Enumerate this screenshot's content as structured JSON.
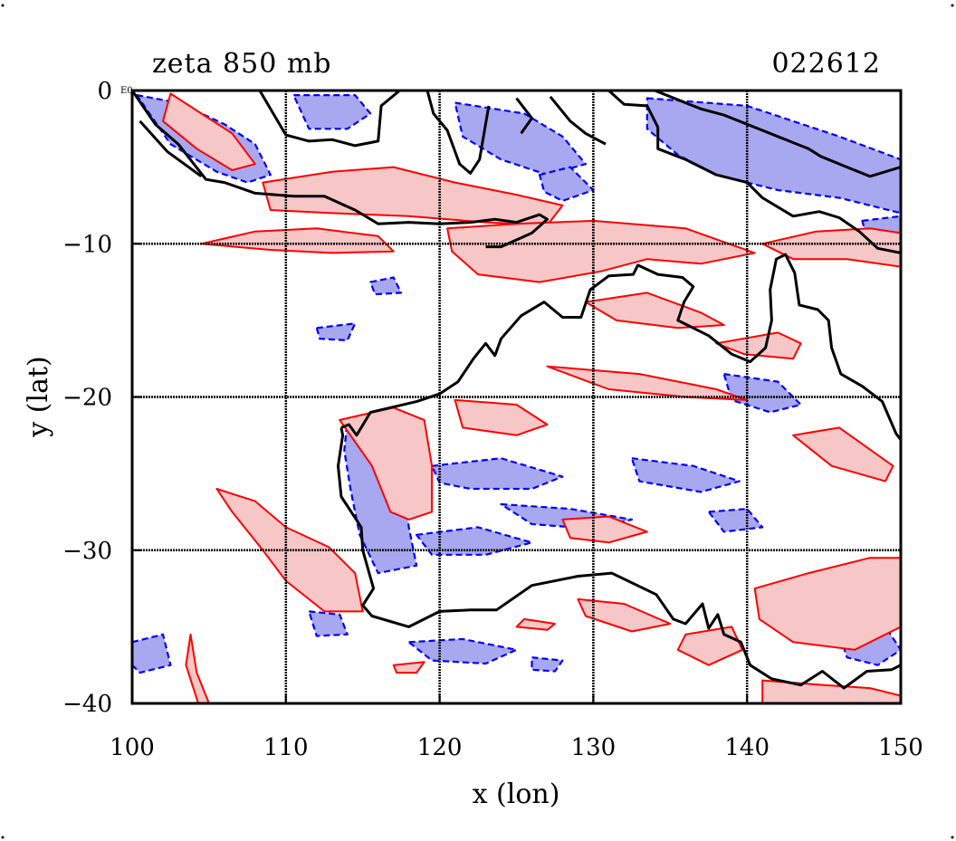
{
  "title": "zeta 850 mb",
  "timestamp": "022612",
  "corner_mark": "E0",
  "x_axis": {
    "label": "x (lon)",
    "range": [
      100,
      150
    ],
    "ticks": [
      100,
      110,
      120,
      130,
      140,
      150
    ],
    "tick_labels": [
      "100",
      "110",
      "120",
      "130",
      "140",
      "150"
    ]
  },
  "y_axis": {
    "label": "y (lat)",
    "range": [
      -40,
      0
    ],
    "ticks": [
      0,
      -10,
      -20,
      -30,
      -40
    ],
    "tick_labels": [
      "0",
      "−10",
      "−20",
      "−30",
      "−40"
    ]
  },
  "grid": true,
  "colors": {
    "positive_fill": "#f7c6c6",
    "positive_line": "#ff0000",
    "negative_fill": "#a8a8f0",
    "negative_line": "#0000ff",
    "coastline": "#000000",
    "grid": "#000000"
  },
  "coastline": [
    [
      [
        113.6,
        -22.0
      ],
      [
        114.1,
        -21.8
      ],
      [
        114.6,
        -22.5
      ],
      [
        115.5,
        -21.0
      ],
      [
        116.8,
        -20.7
      ],
      [
        118.5,
        -20.3
      ],
      [
        120.0,
        -19.8
      ],
      [
        121.2,
        -19.0
      ],
      [
        122.2,
        -17.5
      ],
      [
        123.0,
        -16.5
      ],
      [
        123.6,
        -17.3
      ],
      [
        124.0,
        -16.2
      ],
      [
        125.3,
        -14.7
      ],
      [
        126.8,
        -13.8
      ],
      [
        128.0,
        -14.8
      ],
      [
        129.2,
        -14.8
      ],
      [
        129.8,
        -13.0
      ],
      [
        131.0,
        -12.1
      ],
      [
        132.6,
        -12.0
      ],
      [
        132.9,
        -11.4
      ],
      [
        134.2,
        -12.0
      ],
      [
        135.8,
        -12.2
      ],
      [
        136.5,
        -12.8
      ],
      [
        135.9,
        -13.8
      ],
      [
        135.5,
        -15.0
      ],
      [
        137.5,
        -16.0
      ],
      [
        139.0,
        -17.2
      ],
      [
        140.2,
        -17.7
      ],
      [
        141.2,
        -16.8
      ],
      [
        141.6,
        -15.0
      ],
      [
        141.5,
        -13.0
      ],
      [
        141.9,
        -11.0
      ],
      [
        142.5,
        -10.7
      ],
      [
        143.1,
        -11.9
      ],
      [
        143.4,
        -14.0
      ],
      [
        144.6,
        -14.3
      ],
      [
        145.3,
        -15.0
      ],
      [
        145.5,
        -16.8
      ],
      [
        146.1,
        -18.5
      ],
      [
        147.5,
        -19.3
      ],
      [
        148.8,
        -20.3
      ],
      [
        149.7,
        -22.4
      ],
      [
        150.0,
        -22.8
      ]
    ],
    [
      [
        150.0,
        -37.5
      ],
      [
        149.4,
        -37.8
      ],
      [
        147.8,
        -37.9
      ],
      [
        146.3,
        -39.0
      ],
      [
        144.9,
        -37.9
      ],
      [
        143.5,
        -38.8
      ],
      [
        141.6,
        -38.4
      ],
      [
        140.2,
        -37.5
      ],
      [
        139.6,
        -36.0
      ],
      [
        138.5,
        -35.5
      ],
      [
        138.1,
        -34.2
      ],
      [
        137.5,
        -35.1
      ],
      [
        137.1,
        -33.5
      ],
      [
        136.0,
        -34.8
      ],
      [
        135.2,
        -34.5
      ],
      [
        134.1,
        -32.9
      ],
      [
        131.2,
        -31.5
      ],
      [
        129.0,
        -31.7
      ],
      [
        126.0,
        -32.3
      ],
      [
        123.7,
        -33.9
      ],
      [
        122.0,
        -33.9
      ],
      [
        120.0,
        -34.0
      ],
      [
        118.0,
        -35.0
      ],
      [
        115.6,
        -34.3
      ],
      [
        115.0,
        -33.6
      ],
      [
        115.7,
        -32.5
      ],
      [
        115.0,
        -30.0
      ],
      [
        114.9,
        -28.5
      ],
      [
        113.6,
        -26.5
      ],
      [
        113.4,
        -24.5
      ],
      [
        113.7,
        -22.5
      ],
      [
        113.6,
        -22.0
      ]
    ],
    [
      [
        100.0,
        0.0
      ],
      [
        101.5,
        -2.2
      ],
      [
        103.0,
        -3.5
      ],
      [
        104.8,
        -5.8
      ],
      [
        106.0,
        -6.0
      ],
      [
        108.0,
        -6.7
      ],
      [
        110.5,
        -6.9
      ],
      [
        112.5,
        -6.9
      ],
      [
        114.5,
        -7.8
      ],
      [
        116.0,
        -8.7
      ],
      [
        118.0,
        -8.6
      ],
      [
        120.0,
        -8.7
      ],
      [
        122.0,
        -8.6
      ],
      [
        123.6,
        -8.4
      ],
      [
        125.0,
        -8.6
      ],
      [
        126.5,
        -8.1
      ],
      [
        127.0,
        -8.4
      ],
      [
        126.0,
        -9.3
      ],
      [
        124.0,
        -10.2
      ],
      [
        123.0,
        -10.2
      ]
    ],
    [
      [
        104.5,
        -5.6
      ],
      [
        102.3,
        -4.0
      ],
      [
        100.5,
        -2.0
      ]
    ],
    [
      [
        108.3,
        0.0
      ],
      [
        109.0,
        -1.2
      ],
      [
        110.0,
        -2.9
      ],
      [
        111.5,
        -3.3
      ],
      [
        113.0,
        -3.2
      ],
      [
        114.5,
        -3.6
      ],
      [
        116.0,
        -3.3
      ],
      [
        116.2,
        -1.0
      ],
      [
        117.4,
        0.0
      ]
    ],
    [
      [
        119.2,
        0.0
      ],
      [
        119.6,
        -1.5
      ],
      [
        120.5,
        -2.6
      ],
      [
        121.3,
        -4.8
      ],
      [
        122.0,
        -5.4
      ],
      [
        122.6,
        -4.5
      ],
      [
        123.2,
        -1.0
      ]
    ],
    [
      [
        131.0,
        0.0
      ],
      [
        132.0,
        -0.9
      ],
      [
        133.5,
        -1.0
      ],
      [
        134.2,
        -2.4
      ],
      [
        134.2,
        -3.8
      ],
      [
        136.0,
        -4.5
      ],
      [
        138.0,
        -5.5
      ],
      [
        140.0,
        -6.0
      ],
      [
        141.0,
        -7.0
      ],
      [
        143.0,
        -8.2
      ],
      [
        144.7,
        -7.9
      ],
      [
        146.0,
        -8.3
      ],
      [
        147.3,
        -9.2
      ],
      [
        148.5,
        -10.3
      ],
      [
        150.0,
        -10.6
      ]
    ],
    [
      [
        150.0,
        -5.0
      ],
      [
        148.0,
        -5.6
      ],
      [
        146.5,
        -5.0
      ],
      [
        144.8,
        -4.3
      ],
      [
        144.0,
        -3.8
      ],
      [
        142.0,
        -3.0
      ],
      [
        141.0,
        -2.6
      ],
      [
        138.5,
        -1.6
      ],
      [
        137.0,
        -1.2
      ],
      [
        135.5,
        -0.6
      ],
      [
        134.0,
        0.0
      ]
    ],
    [
      [
        127.2,
        -0.4
      ],
      [
        128.5,
        -2.0
      ],
      [
        129.5,
        -2.8
      ],
      [
        130.8,
        -3.5
      ]
    ],
    [
      [
        125.0,
        -0.5
      ],
      [
        126.0,
        -1.8
      ],
      [
        125.3,
        -2.8
      ]
    ]
  ],
  "positive_regions": [
    [
      [
        102.5,
        -0.2
      ],
      [
        104.5,
        -1.5
      ],
      [
        106.5,
        -2.8
      ],
      [
        108.0,
        -4.8
      ],
      [
        106.5,
        -5.2
      ],
      [
        104.2,
        -3.8
      ],
      [
        102.0,
        -2.0
      ]
    ],
    [
      [
        108.5,
        -6.0
      ],
      [
        113.0,
        -5.3
      ],
      [
        117.0,
        -5.0
      ],
      [
        121.0,
        -6.0
      ],
      [
        125.0,
        -6.8
      ],
      [
        128.0,
        -7.5
      ],
      [
        127.0,
        -8.8
      ],
      [
        123.0,
        -8.6
      ],
      [
        118.0,
        -8.2
      ],
      [
        113.0,
        -8.0
      ],
      [
        109.0,
        -7.8
      ]
    ],
    [
      [
        104.5,
        -10.0
      ],
      [
        108.0,
        -9.2
      ],
      [
        112.0,
        -9.0
      ],
      [
        116.0,
        -9.5
      ],
      [
        117.0,
        -10.5
      ],
      [
        113.0,
        -10.6
      ],
      [
        109.0,
        -10.4
      ]
    ],
    [
      [
        120.5,
        -9.0
      ],
      [
        125.0,
        -8.7
      ],
      [
        130.0,
        -8.5
      ],
      [
        136.0,
        -9.0
      ],
      [
        140.5,
        -10.6
      ],
      [
        137.0,
        -11.3
      ],
      [
        133.5,
        -11.0
      ],
      [
        130.5,
        -11.8
      ],
      [
        126.5,
        -12.5
      ],
      [
        122.5,
        -12.0
      ],
      [
        120.8,
        -10.5
      ]
    ],
    [
      [
        141.0,
        -10.0
      ],
      [
        144.5,
        -9.2
      ],
      [
        148.0,
        -9.0
      ],
      [
        150.0,
        -9.3
      ],
      [
        150.0,
        -11.5
      ],
      [
        146.5,
        -11.0
      ],
      [
        143.0,
        -11.0
      ]
    ],
    [
      [
        129.5,
        -13.8
      ],
      [
        133.5,
        -13.2
      ],
      [
        137.0,
        -14.5
      ],
      [
        138.5,
        -15.3
      ],
      [
        135.5,
        -15.5
      ],
      [
        131.5,
        -15.0
      ]
    ],
    [
      [
        138.0,
        -16.5
      ],
      [
        142.0,
        -15.8
      ],
      [
        143.5,
        -16.5
      ],
      [
        143.0,
        -17.5
      ],
      [
        139.8,
        -17.2
      ]
    ],
    [
      [
        127.0,
        -18.0
      ],
      [
        133.0,
        -18.5
      ],
      [
        138.0,
        -19.5
      ],
      [
        140.0,
        -20.2
      ],
      [
        136.0,
        -20.0
      ],
      [
        131.0,
        -19.5
      ]
    ],
    [
      [
        105.5,
        -26.0
      ],
      [
        108.0,
        -26.8
      ],
      [
        110.0,
        -28.5
      ],
      [
        112.8,
        -29.8
      ],
      [
        114.5,
        -31.5
      ],
      [
        115.0,
        -34.0
      ],
      [
        112.5,
        -34.0
      ],
      [
        110.0,
        -32.0
      ],
      [
        108.5,
        -30.0
      ],
      [
        106.5,
        -27.5
      ]
    ],
    [
      [
        113.5,
        -21.5
      ],
      [
        117.0,
        -20.7
      ],
      [
        119.0,
        -21.5
      ],
      [
        119.5,
        -24.5
      ],
      [
        119.5,
        -27.5
      ],
      [
        118.0,
        -28.0
      ],
      [
        116.8,
        -27.5
      ],
      [
        115.6,
        -24.5
      ]
    ],
    [
      [
        121.0,
        -20.2
      ],
      [
        125.0,
        -20.5
      ],
      [
        127.0,
        -21.8
      ],
      [
        125.0,
        -22.5
      ],
      [
        121.5,
        -22.0
      ]
    ],
    [
      [
        128.0,
        -28.0
      ],
      [
        131.0,
        -27.8
      ],
      [
        133.5,
        -28.8
      ],
      [
        131.0,
        -29.5
      ],
      [
        128.5,
        -29.2
      ]
    ],
    [
      [
        129.0,
        -33.2
      ],
      [
        132.0,
        -33.5
      ],
      [
        135.0,
        -34.8
      ],
      [
        132.5,
        -35.3
      ],
      [
        129.5,
        -34.3
      ]
    ],
    [
      [
        125.5,
        -34.5
      ],
      [
        127.5,
        -34.8
      ],
      [
        127.0,
        -35.2
      ],
      [
        125.0,
        -35.0
      ]
    ],
    [
      [
        136.0,
        -35.5
      ],
      [
        139.0,
        -35.0
      ],
      [
        139.7,
        -36.5
      ],
      [
        137.5,
        -37.5
      ],
      [
        135.5,
        -36.5
      ]
    ],
    [
      [
        140.5,
        -32.5
      ],
      [
        144.0,
        -31.5
      ],
      [
        148.0,
        -30.5
      ],
      [
        150.0,
        -30.5
      ],
      [
        150.0,
        -35.0
      ],
      [
        147.0,
        -36.5
      ],
      [
        143.0,
        -36.0
      ],
      [
        140.8,
        -34.5
      ]
    ],
    [
      [
        141.0,
        -38.5
      ],
      [
        145.0,
        -38.8
      ],
      [
        148.0,
        -39.0
      ],
      [
        150.0,
        -39.5
      ],
      [
        150.0,
        -40.0
      ],
      [
        141.0,
        -40.0
      ]
    ],
    [
      [
        143.0,
        -22.5
      ],
      [
        146.0,
        -22.0
      ],
      [
        149.5,
        -24.5
      ],
      [
        149.0,
        -25.5
      ],
      [
        145.5,
        -24.5
      ]
    ],
    [
      [
        103.8,
        -35.5
      ],
      [
        104.2,
        -38.0
      ],
      [
        105.0,
        -40.0
      ],
      [
        104.3,
        -40.0
      ],
      [
        103.5,
        -37.5
      ]
    ],
    [
      [
        117.0,
        -37.5
      ],
      [
        119.0,
        -37.3
      ],
      [
        118.5,
        -38.0
      ],
      [
        117.2,
        -38.0
      ]
    ]
  ],
  "negative_regions": [
    [
      [
        100.3,
        -0.3
      ],
      [
        103.0,
        -0.8
      ],
      [
        106.0,
        -2.2
      ],
      [
        108.0,
        -3.5
      ],
      [
        109.0,
        -5.5
      ],
      [
        107.5,
        -6.0
      ],
      [
        105.5,
        -5.3
      ],
      [
        102.5,
        -3.5
      ]
    ],
    [
      [
        110.5,
        -0.3
      ],
      [
        114.5,
        -0.3
      ],
      [
        115.5,
        -1.5
      ],
      [
        114.0,
        -2.5
      ],
      [
        111.5,
        -2.5
      ]
    ],
    [
      [
        121.0,
        -0.8
      ],
      [
        125.5,
        -1.5
      ],
      [
        128.0,
        -3.0
      ],
      [
        129.5,
        -4.8
      ],
      [
        127.0,
        -5.5
      ],
      [
        124.0,
        -4.5
      ],
      [
        121.5,
        -3.0
      ]
    ],
    [
      [
        133.5,
        -0.5
      ],
      [
        140.0,
        -1.0
      ],
      [
        146.0,
        -3.0
      ],
      [
        150.0,
        -4.5
      ],
      [
        150.0,
        -8.0
      ],
      [
        146.0,
        -7.0
      ],
      [
        142.0,
        -6.5
      ],
      [
        138.0,
        -5.5
      ],
      [
        135.5,
        -4.2
      ],
      [
        133.5,
        -2.5
      ]
    ],
    [
      [
        126.5,
        -5.5
      ],
      [
        128.5,
        -5.0
      ],
      [
        130.0,
        -6.5
      ],
      [
        128.0,
        -7.2
      ],
      [
        126.8,
        -6.6
      ]
    ],
    [
      [
        147.5,
        -8.5
      ],
      [
        150.0,
        -8.2
      ],
      [
        150.0,
        -11.0
      ],
      [
        148.0,
        -10.5
      ]
    ],
    [
      [
        114.0,
        -21.5
      ],
      [
        116.0,
        -22.5
      ],
      [
        117.5,
        -25.0
      ],
      [
        118.0,
        -28.5
      ],
      [
        118.5,
        -31.0
      ],
      [
        116.0,
        -31.5
      ],
      [
        114.8,
        -29.0
      ],
      [
        114.2,
        -26.0
      ],
      [
        113.8,
        -23.5
      ]
    ],
    [
      [
        119.5,
        -24.5
      ],
      [
        124.0,
        -24.0
      ],
      [
        128.0,
        -25.2
      ],
      [
        126.0,
        -26.0
      ],
      [
        122.0,
        -26.0
      ],
      [
        120.0,
        -25.6
      ]
    ],
    [
      [
        118.5,
        -29.0
      ],
      [
        122.5,
        -28.5
      ],
      [
        126.0,
        -29.5
      ],
      [
        123.0,
        -30.3
      ],
      [
        119.5,
        -30.3
      ]
    ],
    [
      [
        132.5,
        -24.0
      ],
      [
        136.5,
        -24.5
      ],
      [
        139.5,
        -25.5
      ],
      [
        137.0,
        -26.2
      ],
      [
        133.0,
        -25.5
      ]
    ],
    [
      [
        124.0,
        -27.0
      ],
      [
        128.5,
        -27.3
      ],
      [
        132.5,
        -28.0
      ],
      [
        130.0,
        -28.6
      ],
      [
        126.0,
        -28.3
      ]
    ],
    [
      [
        118.0,
        -36.0
      ],
      [
        121.5,
        -35.8
      ],
      [
        125.0,
        -36.5
      ],
      [
        123.0,
        -37.4
      ],
      [
        119.5,
        -37.2
      ]
    ],
    [
      [
        126.0,
        -37.0
      ],
      [
        128.0,
        -37.2
      ],
      [
        127.5,
        -37.9
      ],
      [
        126.0,
        -37.8
      ]
    ],
    [
      [
        100.0,
        -36.0
      ],
      [
        102.0,
        -35.5
      ],
      [
        102.5,
        -37.5
      ],
      [
        100.5,
        -38.0
      ],
      [
        100.0,
        -37.5
      ]
    ],
    [
      [
        111.5,
        -34.0
      ],
      [
        113.5,
        -34.2
      ],
      [
        114.0,
        -35.5
      ],
      [
        112.0,
        -35.6
      ]
    ],
    [
      [
        138.5,
        -18.5
      ],
      [
        142.0,
        -19.0
      ],
      [
        143.5,
        -20.5
      ],
      [
        141.5,
        -21.0
      ],
      [
        139.0,
        -20.2
      ]
    ],
    [
      [
        146.0,
        -35.5
      ],
      [
        149.0,
        -35.0
      ],
      [
        150.0,
        -36.5
      ],
      [
        148.5,
        -37.5
      ],
      [
        146.5,
        -37.0
      ]
    ],
    [
      [
        137.5,
        -27.5
      ],
      [
        140.0,
        -27.3
      ],
      [
        141.0,
        -28.5
      ],
      [
        138.5,
        -28.8
      ]
    ],
    [
      [
        115.5,
        -12.5
      ],
      [
        117.0,
        -12.2
      ],
      [
        117.5,
        -13.2
      ],
      [
        115.8,
        -13.3
      ]
    ],
    [
      [
        112.0,
        -15.5
      ],
      [
        114.5,
        -15.2
      ],
      [
        114.0,
        -16.3
      ],
      [
        112.2,
        -16.2
      ]
    ]
  ]
}
